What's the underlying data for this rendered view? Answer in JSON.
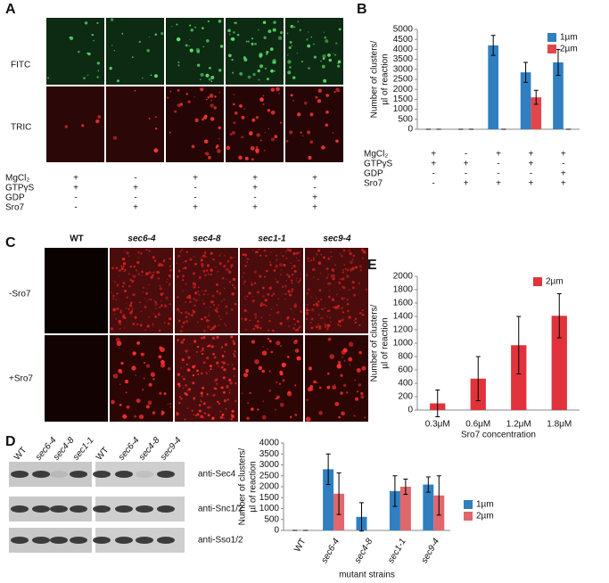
{
  "panel_a": {
    "label": "A",
    "rows": [
      "FITC",
      "TRIC"
    ],
    "conditions": [
      {
        "name": "MgCl₂",
        "marks": [
          "+",
          "-",
          "+",
          "+",
          "+"
        ]
      },
      {
        "name": "GTPγS",
        "marks": [
          "+",
          "+",
          "-",
          "+",
          "-"
        ]
      },
      {
        "name": "GDP",
        "marks": [
          "-",
          "-",
          "-",
          "-",
          "+"
        ]
      },
      {
        "name": "Sro7",
        "marks": [
          "-",
          "+",
          "+",
          "+",
          "+"
        ]
      }
    ]
  },
  "panel_b": {
    "label": "B"
  },
  "panel_c": {
    "label": "C",
    "columns": [
      "WT",
      "sec6-4",
      "sec4-8",
      "sec1-1",
      "sec9-4"
    ],
    "rows": [
      "-Sro7",
      "+Sro7"
    ]
  },
  "panel_d": {
    "label": "D",
    "lanes": [
      "WT",
      "sec6-4",
      "sec4-8",
      "sec1-1",
      "WT",
      "sec6-4",
      "sec4-8",
      "sec9-4"
    ],
    "blots": [
      "anti-Sec4",
      "anti-Snc1/2",
      "anti-Sso1/2"
    ]
  },
  "panel_e": {
    "label": "E"
  },
  "chart_data": [
    {
      "type": "bar",
      "ylabel": [
        "Number of clusters/",
        "µl of reaction"
      ],
      "ylim": [
        0,
        5000
      ],
      "yticks": [
        0,
        500,
        1000,
        1500,
        2000,
        2500,
        3000,
        3500,
        4000,
        4500,
        5000
      ],
      "legend": "upper right",
      "series": [
        {
          "name": "1µm",
          "color": "#2f7fc1",
          "values": [
            0,
            0,
            4200,
            2850,
            3350
          ],
          "errors": [
            0,
            0,
            500,
            500,
            650
          ]
        },
        {
          "name": "2µm",
          "color": "#e0474c",
          "values": [
            0,
            0,
            0,
            1600,
            0
          ],
          "errors": [
            0,
            0,
            0,
            350,
            0
          ]
        }
      ],
      "conditions": [
        {
          "name": "MgCl₂",
          "marks": [
            "+",
            "-",
            "+",
            "+",
            "+"
          ]
        },
        {
          "name": "GTPγS",
          "marks": [
            "+",
            "+",
            "-",
            "+",
            "-"
          ]
        },
        {
          "name": "GDP",
          "marks": [
            "-",
            "-",
            "-",
            "-",
            "+"
          ]
        },
        {
          "name": "Sro7",
          "marks": [
            "-",
            "+",
            "+",
            "+",
            "+"
          ]
        }
      ]
    },
    {
      "type": "bar",
      "ylabel": [
        "Number of clusters/",
        "µl of reaction"
      ],
      "xlabel": "Sro7 concentration",
      "categories": [
        "0.3μM",
        "0.6μM",
        "1.2μM",
        "1.8μM"
      ],
      "ylim": [
        0,
        2000
      ],
      "yticks": [
        0,
        200,
        400,
        600,
        800,
        1000,
        1200,
        1400,
        1600,
        1800,
        2000
      ],
      "legend": "upper right",
      "series": [
        {
          "name": "2µm",
          "color": "#e0333b",
          "values": [
            100,
            470,
            970,
            1410
          ],
          "errors": [
            200,
            330,
            430,
            330
          ]
        }
      ]
    },
    {
      "type": "bar",
      "ylabel": [
        "Number of clusters/",
        "µl of reaction"
      ],
      "xlabel": "mutant strains",
      "categories": [
        "WT",
        "sec6-4",
        "sec4-8",
        "sec1-1",
        "sec9-4"
      ],
      "ylim": [
        0,
        4000
      ],
      "yticks": [
        0,
        500,
        1000,
        1500,
        2000,
        2500,
        3000,
        3500,
        4000
      ],
      "legend": "right",
      "series": [
        {
          "name": "1µm",
          "color": "#2f7fc1",
          "values": [
            0,
            2800,
            620,
            1800,
            2100
          ],
          "errors": [
            0,
            700,
            650,
            700,
            350
          ]
        },
        {
          "name": "2µm",
          "color": "#e0676b",
          "values": [
            0,
            1680,
            null,
            2000,
            1600
          ],
          "errors": [
            0,
            950,
            null,
            350,
            900
          ]
        }
      ]
    }
  ]
}
